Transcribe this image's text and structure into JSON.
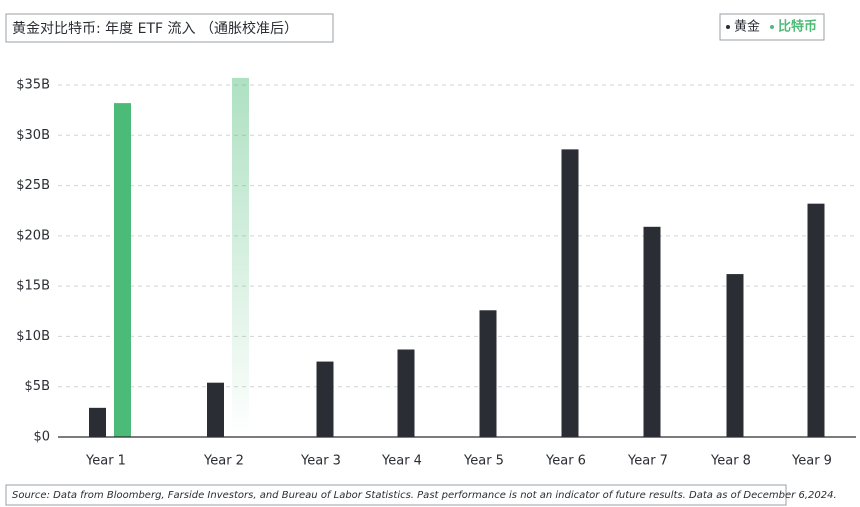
{
  "chart_data": {
    "type": "bar",
    "title": "黄金对比特币: 年度 ETF 流入 （通胀校准后）",
    "categories": [
      "Year 1",
      "Year 2",
      "Year 3",
      "Year 4",
      "Year 5",
      "Year 6",
      "Year 7",
      "Year 8",
      "Year 9"
    ],
    "series": [
      {
        "name": "黄金",
        "color": "#2a2d33",
        "values": [
          2.9,
          5.4,
          7.5,
          8.7,
          12.6,
          28.6,
          20.9,
          16.2,
          23.2
        ]
      },
      {
        "name": "比特币",
        "color": "#4cbb77",
        "values": [
          33.2,
          35.7,
          null,
          null,
          null,
          null,
          null,
          null,
          null
        ]
      }
    ],
    "ylim": [
      0,
      35
    ],
    "yticks": [
      {
        "value": 0,
        "label": "$0"
      },
      {
        "value": 5,
        "label": "$5B"
      },
      {
        "value": 10,
        "label": "$10B"
      },
      {
        "value": 15,
        "label": "$15B"
      },
      {
        "value": 20,
        "label": "$20B"
      },
      {
        "value": 25,
        "label": "$25B"
      },
      {
        "value": 30,
        "label": "$30B"
      },
      {
        "value": 35,
        "label": "$35B"
      }
    ],
    "grid": true,
    "legend": "top-right",
    "source": "Source: Data from Bloomberg, Farside Investors, and Bureau of Labor Statistics. Past performance is not an indicator of future results. Data as of December 6,2024."
  }
}
